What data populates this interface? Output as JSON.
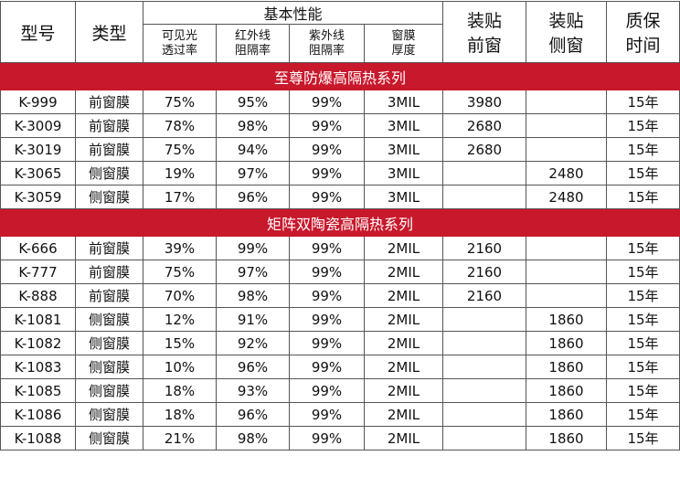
{
  "header": {
    "model": "型号",
    "type": "类型",
    "performance": "基本性能",
    "vlt": [
      "可见光",
      "透过率"
    ],
    "ir": [
      "红外线",
      "阻隔率"
    ],
    "uv": [
      "紫外线",
      "阻隔率"
    ],
    "thickness": [
      "窗膜",
      "厚度"
    ],
    "front_price": [
      "装贴",
      "前窗"
    ],
    "side_price": [
      "装贴",
      "侧窗"
    ],
    "warranty": [
      "质保",
      "时间"
    ]
  },
  "sections": [
    {
      "title": "至尊防爆高隔热系列",
      "rows": [
        {
          "model": "K-999",
          "type": "前窗膜",
          "vlt": "75%",
          "ir": "95%",
          "uv": "99%",
          "thickness": "3MIL",
          "front": "3980",
          "side": "",
          "warranty": "15年"
        },
        {
          "model": "K-3009",
          "type": "前窗膜",
          "vlt": "78%",
          "ir": "98%",
          "uv": "99%",
          "thickness": "3MIL",
          "front": "2680",
          "side": "",
          "warranty": "15年"
        },
        {
          "model": "K-3019",
          "type": "前窗膜",
          "vlt": "75%",
          "ir": "94%",
          "uv": "99%",
          "thickness": "3MIL",
          "front": "2680",
          "side": "",
          "warranty": "15年"
        },
        {
          "model": "K-3065",
          "type": "侧窗膜",
          "vlt": "19%",
          "ir": "97%",
          "uv": "99%",
          "thickness": "3MIL",
          "front": "",
          "side": "2480",
          "warranty": "15年"
        },
        {
          "model": "K-3059",
          "type": "侧窗膜",
          "vlt": "17%",
          "ir": "96%",
          "uv": "99%",
          "thickness": "3MIL",
          "front": "",
          "side": "2480",
          "warranty": "15年"
        }
      ]
    },
    {
      "title": "矩阵双陶瓷高隔热系列",
      "rows": [
        {
          "model": "K-666",
          "type": "前窗膜",
          "vlt": "39%",
          "ir": "99%",
          "uv": "99%",
          "thickness": "2MIL",
          "front": "2160",
          "side": "",
          "warranty": "15年"
        },
        {
          "model": "K-777",
          "type": "前窗膜",
          "vlt": "75%",
          "ir": "97%",
          "uv": "99%",
          "thickness": "2MIL",
          "front": "2160",
          "side": "",
          "warranty": "15年"
        },
        {
          "model": "K-888",
          "type": "前窗膜",
          "vlt": "70%",
          "ir": "98%",
          "uv": "99%",
          "thickness": "2MIL",
          "front": "2160",
          "side": "",
          "warranty": "15年"
        },
        {
          "model": "K-1081",
          "type": "侧窗膜",
          "vlt": "12%",
          "ir": "91%",
          "uv": "99%",
          "thickness": "2MIL",
          "front": "",
          "side": "1860",
          "warranty": "15年"
        },
        {
          "model": "K-1082",
          "type": "侧窗膜",
          "vlt": "15%",
          "ir": "92%",
          "uv": "99%",
          "thickness": "2MIL",
          "front": "",
          "side": "1860",
          "warranty": "15年"
        },
        {
          "model": "K-1083",
          "type": "侧窗膜",
          "vlt": "10%",
          "ir": "96%",
          "uv": "99%",
          "thickness": "2MIL",
          "front": "",
          "side": "1860",
          "warranty": "15年"
        },
        {
          "model": "K-1085",
          "type": "侧窗膜",
          "vlt": "18%",
          "ir": "93%",
          "uv": "99%",
          "thickness": "2MIL",
          "front": "",
          "side": "1860",
          "warranty": "15年"
        },
        {
          "model": "K-1086",
          "type": "侧窗膜",
          "vlt": "18%",
          "ir": "96%",
          "uv": "99%",
          "thickness": "2MIL",
          "front": "",
          "side": "1860",
          "warranty": "15年"
        },
        {
          "model": "K-1088",
          "type": "侧窗膜",
          "vlt": "21%",
          "ir": "98%",
          "uv": "99%",
          "thickness": "2MIL",
          "front": "",
          "side": "1860",
          "warranty": "15年"
        }
      ]
    }
  ],
  "colors": {
    "section_band": "#c8182c",
    "section_text": "#ffffff",
    "border": "#555555"
  }
}
